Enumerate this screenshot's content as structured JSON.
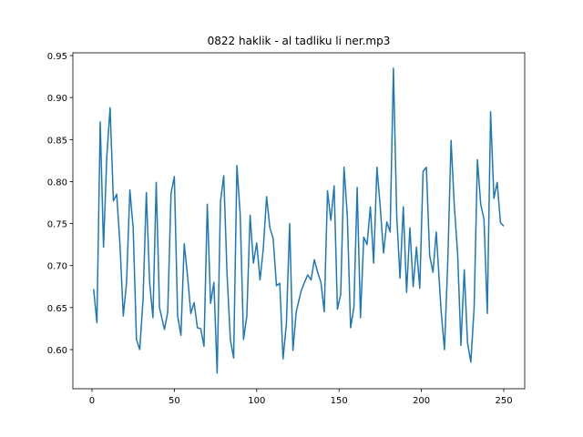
{
  "chart_data": {
    "type": "line",
    "title": "0822 haklik - al tadliku li ner.mp3",
    "x": [
      1,
      3,
      5,
      7,
      9,
      11,
      13,
      15,
      17,
      19,
      21,
      23,
      25,
      27,
      29,
      31,
      33,
      35,
      37,
      39,
      41,
      44,
      46,
      48,
      50,
      52,
      54,
      56,
      58,
      60,
      62,
      64,
      66,
      68,
      70,
      72,
      74,
      76,
      78,
      80,
      82,
      84,
      86,
      88,
      90,
      92,
      94,
      96,
      98,
      100,
      102,
      104,
      106,
      108,
      110,
      112,
      114,
      116,
      118,
      120,
      122,
      124,
      127,
      129,
      131,
      133,
      135,
      137,
      139,
      141,
      143,
      145,
      147,
      149,
      151,
      153,
      155,
      157,
      159,
      161,
      163,
      165,
      167,
      169,
      171,
      173,
      175,
      177,
      179,
      181,
      183,
      185,
      187,
      189,
      191,
      193,
      195,
      197,
      199,
      201,
      203,
      205,
      207,
      209,
      212,
      214,
      216,
      218,
      220,
      222,
      224,
      226,
      228,
      230,
      232,
      234,
      236,
      238,
      240,
      242,
      244,
      246,
      248,
      250
    ],
    "series": [
      {
        "color": "#1f77b4",
        "values": [
          0.672,
          0.632,
          0.871,
          0.722,
          0.83,
          0.888,
          0.777,
          0.785,
          0.725,
          0.64,
          0.68,
          0.79,
          0.745,
          0.612,
          0.6,
          0.66,
          0.787,
          0.68,
          0.638,
          0.799,
          0.65,
          0.624,
          0.645,
          0.786,
          0.806,
          0.64,
          0.617,
          0.726,
          0.688,
          0.643,
          0.656,
          0.626,
          0.625,
          0.604,
          0.773,
          0.655,
          0.68,
          0.572,
          0.776,
          0.807,
          0.69,
          0.612,
          0.59,
          0.819,
          0.76,
          0.612,
          0.64,
          0.76,
          0.703,
          0.727,
          0.683,
          0.72,
          0.782,
          0.745,
          0.732,
          0.676,
          0.679,
          0.589,
          0.63,
          0.75,
          0.599,
          0.645,
          0.67,
          0.68,
          0.689,
          0.683,
          0.707,
          0.692,
          0.68,
          0.645,
          0.789,
          0.754,
          0.795,
          0.648,
          0.666,
          0.817,
          0.76,
          0.626,
          0.65,
          0.793,
          0.638,
          0.734,
          0.725,
          0.77,
          0.703,
          0.817,
          0.77,
          0.715,
          0.752,
          0.74,
          0.935,
          0.76,
          0.685,
          0.77,
          0.668,
          0.745,
          0.675,
          0.722,
          0.673,
          0.812,
          0.817,
          0.712,
          0.692,
          0.74,
          0.645,
          0.6,
          0.705,
          0.849,
          0.77,
          0.714,
          0.605,
          0.695,
          0.608,
          0.585,
          0.65,
          0.826,
          0.773,
          0.755,
          0.643,
          0.883,
          0.78,
          0.799,
          0.751,
          0.747
        ]
      }
    ],
    "xlim": [
      -11.6,
      262.7
    ],
    "ylim": [
      0.5534,
      0.9533
    ],
    "xticks": [
      0,
      50,
      100,
      150,
      200,
      250
    ],
    "yticks": [
      {
        "value": 0.6,
        "label": "0.60"
      },
      {
        "value": 0.65,
        "label": "0.65"
      },
      {
        "value": 0.7,
        "label": "0.70"
      },
      {
        "value": 0.75,
        "label": "0.75"
      },
      {
        "value": 0.8,
        "label": "0.80"
      },
      {
        "value": 0.85,
        "label": "0.85"
      },
      {
        "value": 0.9,
        "label": "0.90"
      },
      {
        "value": 0.95,
        "label": "0.95"
      }
    ]
  }
}
